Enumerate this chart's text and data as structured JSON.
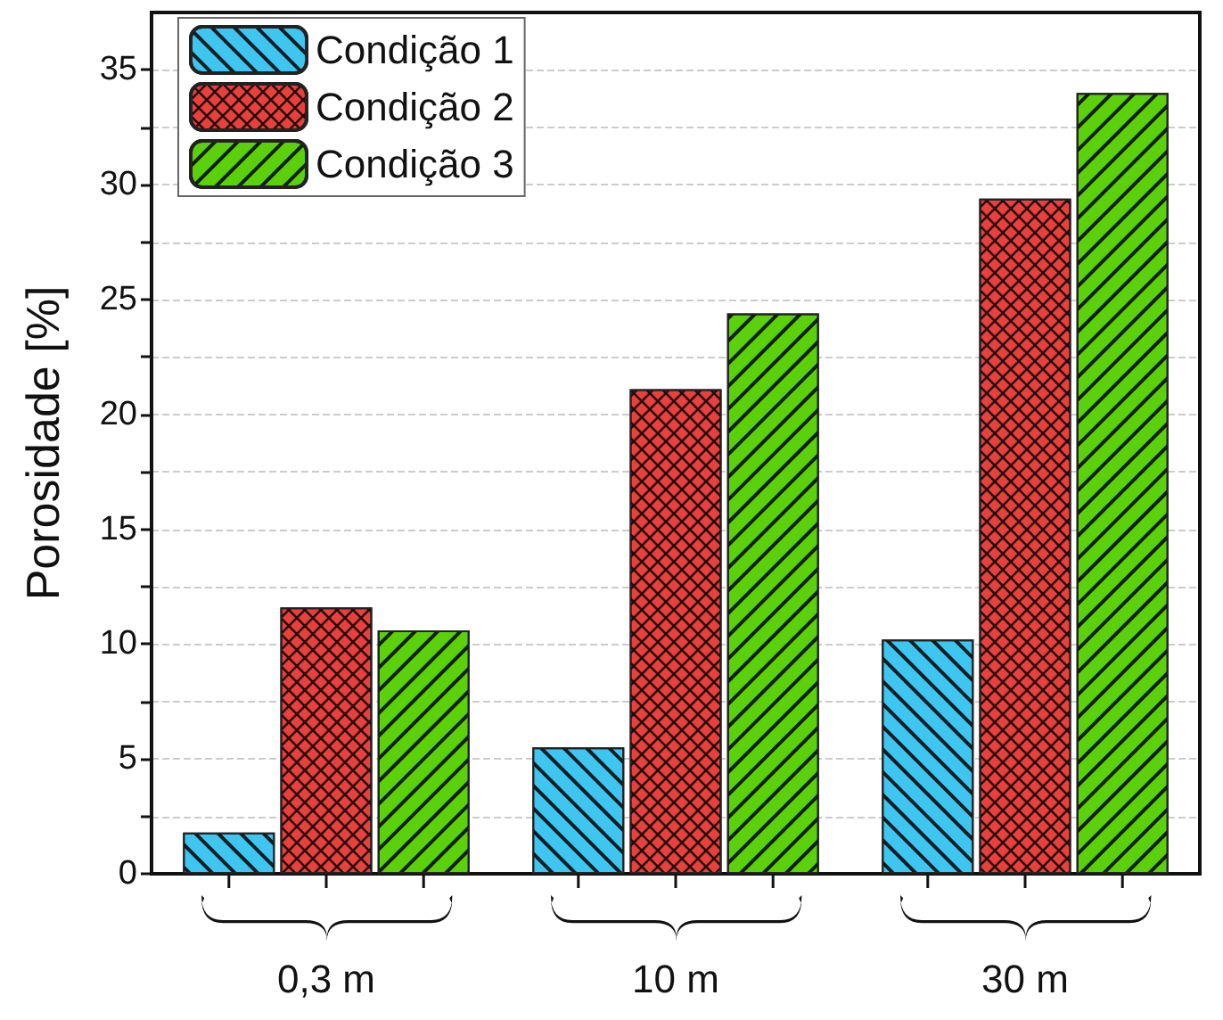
{
  "chart_data": {
    "type": "bar",
    "ylabel": "Porosidade [%]",
    "categories": [
      "0,3 m",
      "10 m",
      "30 m"
    ],
    "series": [
      {
        "name": "Condição 1",
        "color": "#3ec6f0",
        "values": [
          1.8,
          5.5,
          10.2
        ]
      },
      {
        "name": "Condição 2",
        "color": "#e8403a",
        "values": [
          11.6,
          21.1,
          29.4
        ]
      },
      {
        "name": "Condição 3",
        "color": "#5ad10a",
        "values": [
          10.6,
          24.4,
          34.0
        ]
      }
    ],
    "ylim": [
      0,
      37.5
    ],
    "yticks": [
      0,
      {
        "value": 2.5,
        "label": null
      },
      5,
      {
        "value": 7.5,
        "label": null
      },
      10,
      {
        "value": 12.5,
        "label": null
      },
      15,
      {
        "value": 17.5,
        "label": null
      },
      20,
      {
        "value": 22.5,
        "label": null
      },
      25,
      {
        "value": 27.5,
        "label": null
      },
      30,
      {
        "value": 32.5,
        "label": null
      },
      35
    ],
    "grid": "y",
    "legend": "top left"
  }
}
